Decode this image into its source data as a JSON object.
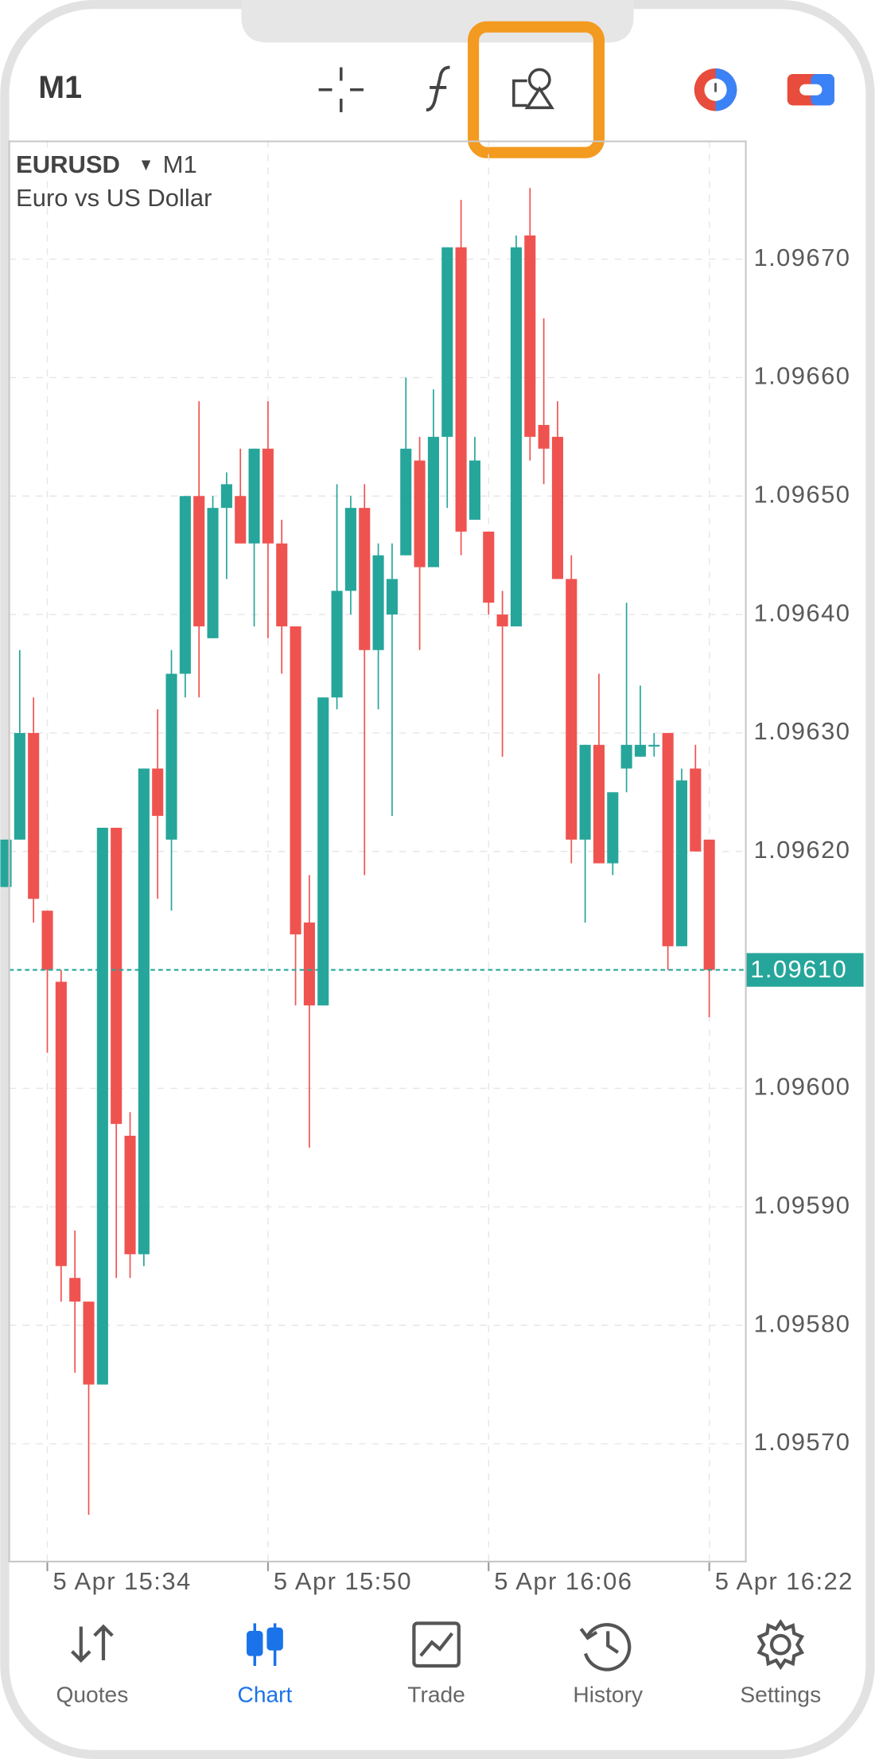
{
  "toolbar": {
    "timeframe": "M1"
  },
  "chart_data": {
    "type": "candlestick",
    "symbol": "EURUSD",
    "timeframe": "M1",
    "subtitle": "Euro vs US Dollar",
    "x": [
      "5 Apr 15:31",
      "5 Apr 15:32",
      "5 Apr 15:33",
      "5 Apr 15:34",
      "5 Apr 15:35",
      "5 Apr 15:36",
      "5 Apr 15:37",
      "5 Apr 15:38",
      "5 Apr 15:39",
      "5 Apr 15:40",
      "5 Apr 15:41",
      "5 Apr 15:42",
      "5 Apr 15:43",
      "5 Apr 15:44",
      "5 Apr 15:45",
      "5 Apr 15:46",
      "5 Apr 15:47",
      "5 Apr 15:48",
      "5 Apr 15:49",
      "5 Apr 15:50",
      "5 Apr 15:51",
      "5 Apr 15:52",
      "5 Apr 15:53",
      "5 Apr 15:54",
      "5 Apr 15:55",
      "5 Apr 15:56",
      "5 Apr 15:57",
      "5 Apr 15:58",
      "5 Apr 15:59",
      "5 Apr 16:00",
      "5 Apr 16:01",
      "5 Apr 16:02",
      "5 Apr 16:03",
      "5 Apr 16:04",
      "5 Apr 16:05",
      "5 Apr 16:06",
      "5 Apr 16:07",
      "5 Apr 16:08",
      "5 Apr 16:09",
      "5 Apr 16:10",
      "5 Apr 16:11",
      "5 Apr 16:12",
      "5 Apr 16:13",
      "5 Apr 16:14",
      "5 Apr 16:15",
      "5 Apr 16:16",
      "5 Apr 16:17",
      "5 Apr 16:18",
      "5 Apr 16:19",
      "5 Apr 16:20",
      "5 Apr 16:21",
      "5 Apr 16:22"
    ],
    "open": [
      1.09617,
      1.09621,
      1.0963,
      1.09615,
      1.09609,
      1.09584,
      1.09582,
      1.09575,
      1.09622,
      1.09596,
      1.09586,
      1.09627,
      1.09621,
      1.09635,
      1.0965,
      1.09638,
      1.09649,
      1.0965,
      1.09646,
      1.09654,
      1.09646,
      1.09639,
      1.09614,
      1.09607,
      1.09633,
      1.09642,
      1.09649,
      1.09637,
      1.0964,
      1.09645,
      1.09653,
      1.09644,
      1.09655,
      1.09671,
      1.09648,
      1.09647,
      1.0964,
      1.09639,
      1.09672,
      1.09656,
      1.09655,
      1.09643,
      1.09621,
      1.09629,
      1.09619,
      1.09627,
      1.09628,
      1.09629,
      1.0963,
      1.09612,
      1.09627,
      1.09621
    ],
    "high": [
      1.09621,
      1.09637,
      1.09633,
      1.09615,
      1.0961,
      1.09588,
      1.09582,
      1.09622,
      1.09622,
      1.09598,
      1.09627,
      1.09632,
      1.09637,
      1.0965,
      1.09658,
      1.0965,
      1.09652,
      1.09654,
      1.09654,
      1.09658,
      1.09648,
      1.09639,
      1.09618,
      1.09633,
      1.09651,
      1.0965,
      1.09651,
      1.09646,
      1.09646,
      1.0966,
      1.09655,
      1.09659,
      1.09671,
      1.09675,
      1.09655,
      1.09647,
      1.09642,
      1.09672,
      1.09676,
      1.09665,
      1.09658,
      1.09645,
      1.09629,
      1.09635,
      1.09625,
      1.09641,
      1.09634,
      1.0963,
      1.0963,
      1.09627,
      1.09629,
      1.09621
    ],
    "low": [
      1.09617,
      1.09621,
      1.09614,
      1.09603,
      1.09582,
      1.09576,
      1.09564,
      1.09575,
      1.09584,
      1.09584,
      1.09585,
      1.09616,
      1.09615,
      1.09633,
      1.09633,
      1.09638,
      1.09643,
      1.09646,
      1.09639,
      1.09638,
      1.09635,
      1.09607,
      1.09595,
      1.09607,
      1.09632,
      1.0964,
      1.09618,
      1.09632,
      1.09623,
      1.09645,
      1.09637,
      1.09644,
      1.09649,
      1.09645,
      1.09648,
      1.0964,
      1.09628,
      1.09639,
      1.09653,
      1.09651,
      1.09643,
      1.09619,
      1.09614,
      1.09619,
      1.09618,
      1.09625,
      1.09628,
      1.09628,
      1.0961,
      1.09612,
      1.0962,
      1.09606
    ],
    "close": [
      1.09621,
      1.0963,
      1.09616,
      1.0961,
      1.09585,
      1.09582,
      1.09575,
      1.09622,
      1.09597,
      1.09586,
      1.09627,
      1.09623,
      1.09635,
      1.0965,
      1.09639,
      1.09649,
      1.09651,
      1.09646,
      1.09654,
      1.09646,
      1.09639,
      1.09613,
      1.09607,
      1.09633,
      1.09642,
      1.09649,
      1.09637,
      1.09645,
      1.09643,
      1.09654,
      1.09644,
      1.09655,
      1.09671,
      1.09647,
      1.09653,
      1.09641,
      1.09639,
      1.09671,
      1.09655,
      1.09654,
      1.09643,
      1.09621,
      1.09629,
      1.09619,
      1.09625,
      1.09629,
      1.09629,
      1.09629,
      1.09612,
      1.09626,
      1.0962,
      1.0961
    ],
    "up_color": "#26a69a",
    "down_color": "#ef5350",
    "ylim": [
      1.0956,
      1.0968
    ],
    "yticks": [
      {
        "value": 1.0957,
        "label": "1.09570"
      },
      {
        "value": 1.0958,
        "label": "1.09580"
      },
      {
        "value": 1.0959,
        "label": "1.09590"
      },
      {
        "value": 1.096,
        "label": "1.09600"
      },
      {
        "value": 1.0962,
        "label": "1.09620"
      },
      {
        "value": 1.0963,
        "label": "1.09630"
      },
      {
        "value": 1.0964,
        "label": "1.09640"
      },
      {
        "value": 1.0965,
        "label": "1.09650"
      },
      {
        "value": 1.0966,
        "label": "1.09660"
      },
      {
        "value": 1.0967,
        "label": "1.09670"
      }
    ],
    "xticks": [
      "5 Apr 15:34",
      "5 Apr 15:50",
      "5 Apr 16:06",
      "5 Apr 16:22"
    ],
    "current_price": {
      "value": 1.0961,
      "label": "1.09610"
    },
    "grid": true
  },
  "tabs": [
    "Quotes",
    "Chart",
    "Trade",
    "History",
    "Settings"
  ]
}
